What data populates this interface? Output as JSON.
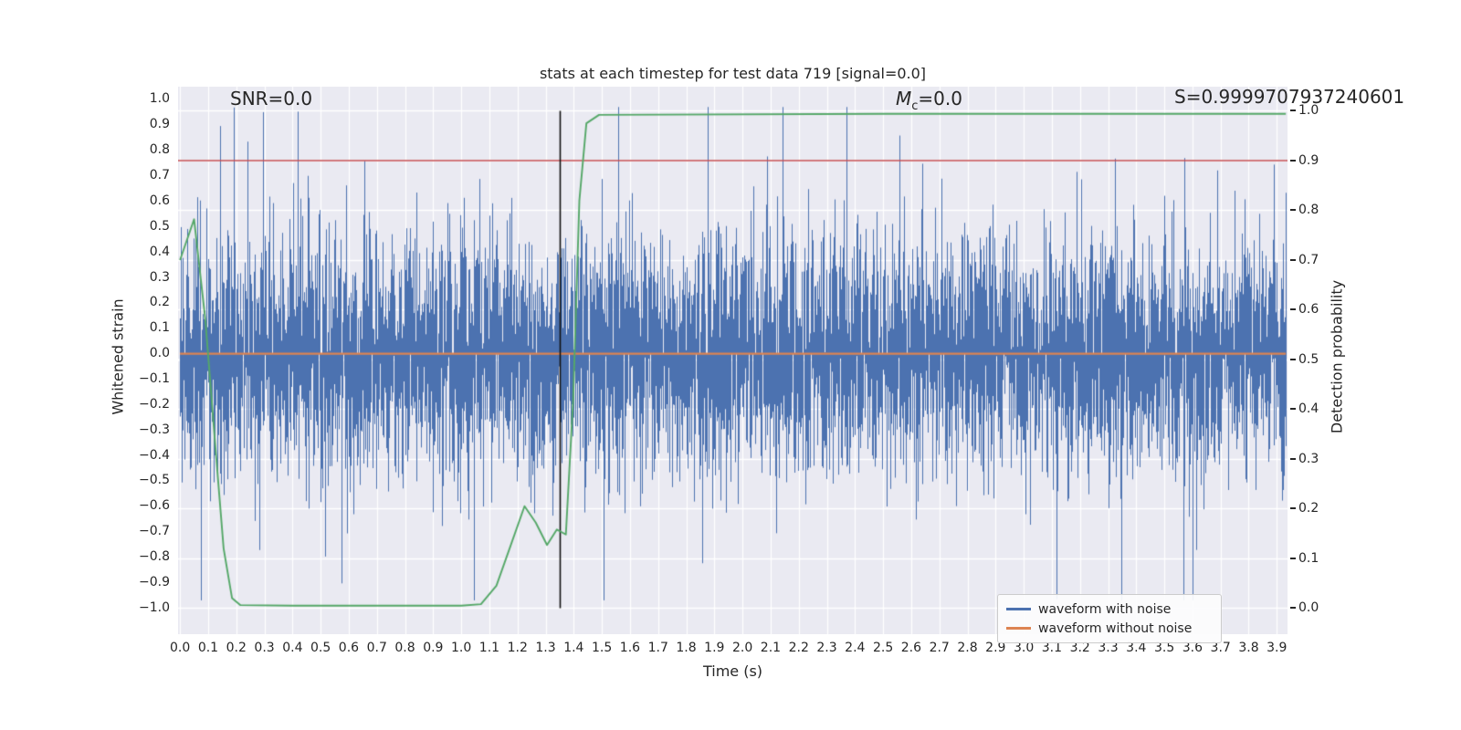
{
  "figure": {
    "title": "stats at each timestep for test data 719 [signal=0.0]",
    "annotations": {
      "snr": "SNR=0.0",
      "mc_var": "M",
      "mc_sub": "c",
      "mc_eq": "=0.0",
      "s": "S=0.9999707937240601"
    },
    "axes": {
      "x_label": "Time (s)",
      "y_left_label": "Whitened strain",
      "y_right_label": "Detection probability"
    },
    "legend": {
      "items": [
        {
          "label": "waveform with noise",
          "color": "#4c72b0"
        },
        {
          "label": "waveform without noise",
          "color": "#dd8452"
        }
      ]
    }
  },
  "chart_data": {
    "type": "line",
    "title": "stats at each timestep for test data 719 [signal=0.0]",
    "xlabel": "Time (s)",
    "ylabel_left": "Whitened strain",
    "ylabel_right": "Detection probability",
    "background": "#eaeaf2",
    "grid": true,
    "grid_color": "#ffffff",
    "legend_position": "lower right",
    "xlim": [
      -0.007,
      3.938
    ],
    "ylim_left": [
      -1.103,
      1.05
    ],
    "ylim_right": [
      -0.0524,
      1.0486
    ],
    "x_ticks": [
      "0.0",
      "0.1",
      "0.2",
      "0.3",
      "0.4",
      "0.5",
      "0.6",
      "0.7",
      "0.8",
      "0.9",
      "1.0",
      "1.1",
      "1.2",
      "1.3",
      "1.4",
      "1.5",
      "1.6",
      "1.7",
      "1.8",
      "1.9",
      "2.0",
      "2.1",
      "2.2",
      "2.3",
      "2.4",
      "2.5",
      "2.6",
      "2.7",
      "2.8",
      "2.9",
      "3.0",
      "3.1",
      "3.2",
      "3.3",
      "3.4",
      "3.5",
      "3.6",
      "3.7",
      "3.8",
      "3.9"
    ],
    "y_left_ticks": [
      "1.0",
      "0.9",
      "0.8",
      "0.7",
      "0.6",
      "0.5",
      "0.4",
      "0.3",
      "0.2",
      "0.1",
      "0.0",
      "−0.1",
      "−0.2",
      "−0.3",
      "−0.4",
      "−0.5",
      "−0.6",
      "−0.7",
      "−0.8",
      "−0.9",
      "−1.0"
    ],
    "y_right_ticks": [
      "1.0",
      "0.9",
      "0.8",
      "0.7",
      "0.6",
      "0.5",
      "0.4",
      "0.3",
      "0.2",
      "0.1",
      "0.0"
    ],
    "annotations": [
      {
        "text": "SNR=0.0"
      },
      {
        "text": "Mc=0.0"
      },
      {
        "text": "S=0.9999707937240601"
      }
    ],
    "series": [
      {
        "name": "waveform with noise",
        "kind": "noise",
        "axis": "left",
        "color": "#4c72b0",
        "width": 1,
        "x_range": [
          0.0,
          3.932
        ],
        "mean": 0.0,
        "std": 0.23,
        "spike_prob": 0.02,
        "spike_scale": 2.2,
        "clip": 0.97,
        "seed": 719,
        "description": "dense zero-mean Gaussian detector noise, typical amplitude ±0.3, occasional spikes to ±0.95"
      },
      {
        "name": "waveform without noise",
        "kind": "hline",
        "axis": "left",
        "color": "#dd8452",
        "width": 2.2,
        "value": 0.0,
        "x_range": [
          0.0,
          3.932
        ]
      },
      {
        "name": "detection threshold",
        "kind": "hline",
        "axis": "right",
        "color": "#c44e52",
        "width": 1.6,
        "value": 0.9
      },
      {
        "name": "event time marker",
        "kind": "vline",
        "axis": "right",
        "color": "#111111",
        "width": 1.6,
        "x": 1.35,
        "y_range": [
          0.0,
          1.0
        ]
      },
      {
        "name": "detection probability",
        "kind": "line",
        "axis": "right",
        "color": "#55a868",
        "width": 1.9,
        "points": [
          [
            0.0,
            0.7
          ],
          [
            0.05,
            0.782
          ],
          [
            0.09,
            0.58
          ],
          [
            0.125,
            0.33
          ],
          [
            0.155,
            0.12
          ],
          [
            0.185,
            0.02
          ],
          [
            0.215,
            0.006
          ],
          [
            0.4,
            0.005
          ],
          [
            0.7,
            0.005
          ],
          [
            1.0,
            0.005
          ],
          [
            1.07,
            0.008
          ],
          [
            1.125,
            0.045
          ],
          [
            1.175,
            0.125
          ],
          [
            1.225,
            0.205
          ],
          [
            1.265,
            0.172
          ],
          [
            1.305,
            0.127
          ],
          [
            1.34,
            0.158
          ],
          [
            1.372,
            0.148
          ],
          [
            1.398,
            0.42
          ],
          [
            1.42,
            0.82
          ],
          [
            1.445,
            0.975
          ],
          [
            1.49,
            0.992
          ],
          [
            2.5,
            0.994
          ],
          [
            3.932,
            0.994
          ]
        ]
      }
    ]
  }
}
